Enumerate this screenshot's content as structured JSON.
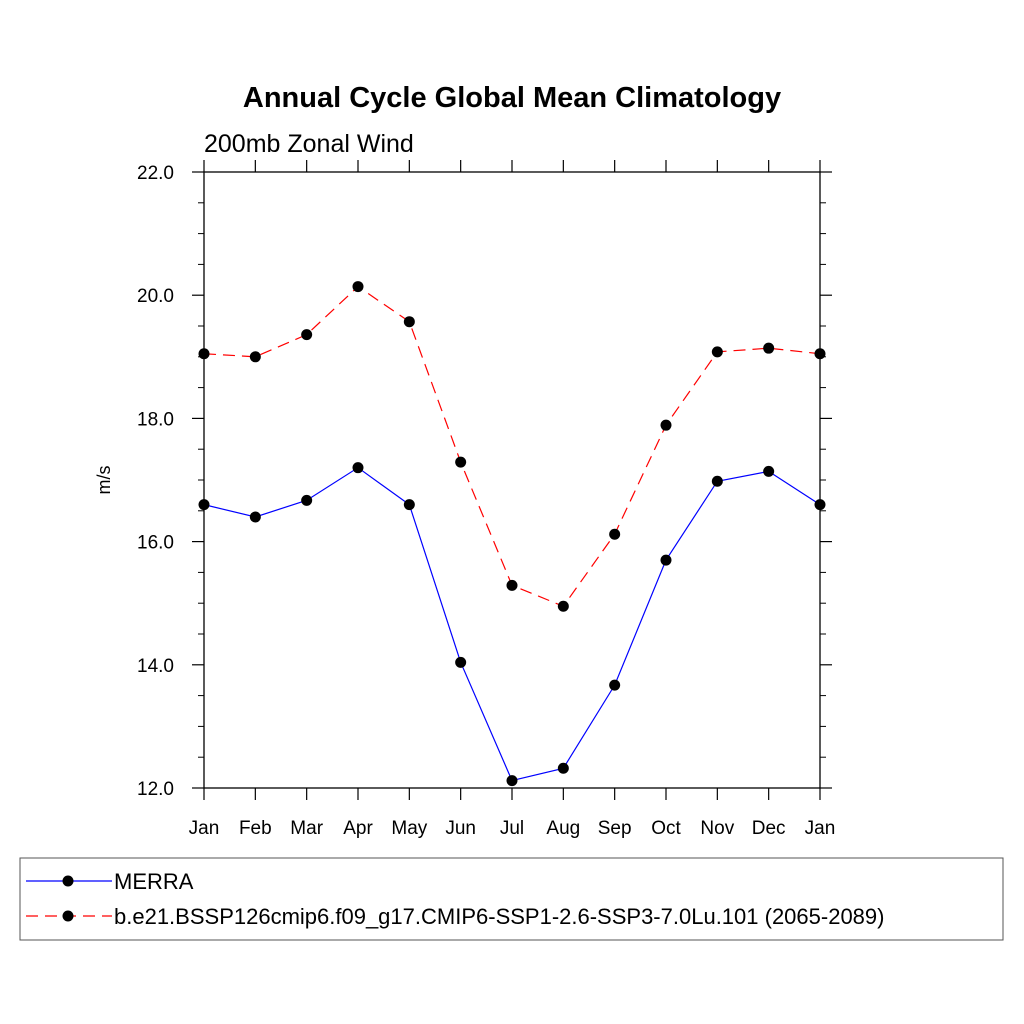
{
  "chart_data": {
    "type": "line",
    "title": "Annual Cycle Global Mean Climatology",
    "subtitle": "200mb Zonal Wind",
    "xlabel": "",
    "ylabel": "m/s",
    "categories": [
      "Jan",
      "Feb",
      "Mar",
      "Apr",
      "May",
      "Jun",
      "Jul",
      "Aug",
      "Sep",
      "Oct",
      "Nov",
      "Dec",
      "Jan"
    ],
    "ylim": [
      12.0,
      22.0
    ],
    "yticks": [
      "12.0",
      "14.0",
      "16.0",
      "18.0",
      "20.0",
      "22.0"
    ],
    "grid": false,
    "legend_position": "bottom",
    "series": [
      {
        "name": "MERRA",
        "color": "#0000ff",
        "line_style": "solid",
        "marker": "filled-circle",
        "values": [
          16.6,
          16.4,
          16.67,
          17.2,
          16.6,
          14.04,
          12.12,
          12.32,
          13.67,
          15.7,
          16.98,
          17.14,
          16.6
        ]
      },
      {
        "name": "b.e21.BSSP126cmip6.f09_g17.CMIP6-SSP1-2.6-SSP3-7.0Lu.101 (2065-2089)",
        "color": "#ff0000",
        "line_style": "dashed",
        "marker": "filled-circle",
        "values": [
          19.05,
          19.0,
          19.36,
          20.14,
          19.57,
          17.29,
          15.29,
          14.95,
          16.12,
          17.89,
          19.08,
          19.14,
          19.05
        ]
      }
    ]
  }
}
